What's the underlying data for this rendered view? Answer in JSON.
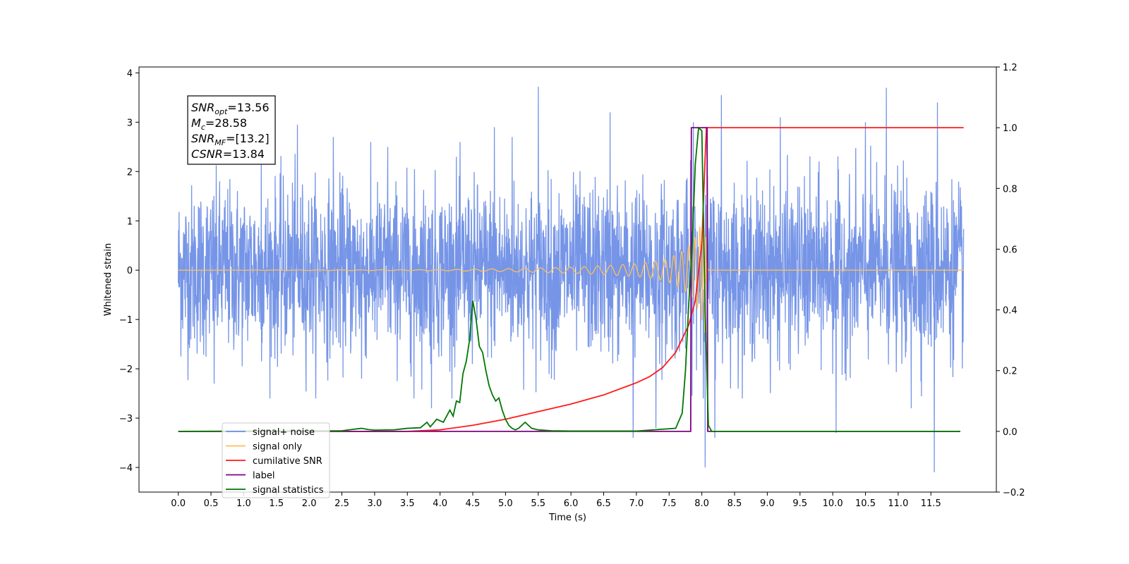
{
  "chart_data": {
    "type": "line",
    "title": "",
    "xlabel": "Time (s)",
    "ylabel_left": "Whitened strain",
    "ylabel_right": "",
    "xlim": [
      -0.6,
      12.5
    ],
    "ylim_left": [
      -4.5,
      4.12
    ],
    "ylim_right": [
      -0.2,
      1.2
    ],
    "x_ticks": [
      0.0,
      0.5,
      1.0,
      1.5,
      2.0,
      2.5,
      3.0,
      3.5,
      4.0,
      4.5,
      5.0,
      5.5,
      6.0,
      6.5,
      7.0,
      7.5,
      8.0,
      8.5,
      9.0,
      9.5,
      10.0,
      10.5,
      11.0,
      11.5
    ],
    "x_tick_labels": [
      "0.0",
      "0.5",
      "1.0",
      "1.5",
      "2.0",
      "2.5",
      "3.0",
      "3.5",
      "4.0",
      "4.5",
      "5.0",
      "5.5",
      "6.0",
      "6.5",
      "7.0",
      "7.5",
      "8.0",
      "8.5",
      "9.0",
      "9.5",
      "10.0",
      "10.5",
      "11.0",
      "11.5"
    ],
    "y_ticks_left": [
      -4,
      -3,
      -2,
      -1,
      0,
      1,
      2,
      3,
      4
    ],
    "y_tick_labels_left": [
      "−4",
      "−3",
      "−2",
      "−1",
      "0",
      "1",
      "2",
      "3",
      "4"
    ],
    "y_ticks_right": [
      -0.2,
      0.0,
      0.2,
      0.4,
      0.6,
      0.8,
      1.0,
      1.2
    ],
    "y_tick_labels_right": [
      "−0.2",
      "0.0",
      "0.2",
      "0.4",
      "0.6",
      "0.8",
      "1.0",
      "1.2"
    ],
    "grid": false,
    "legend_position": "bottom-left",
    "annotation": {
      "lines": [
        {
          "base": "SNR",
          "sub": "opt",
          "rest": "=13.56"
        },
        {
          "base": "M",
          "sub": "c",
          "rest": "=28.58"
        },
        {
          "base": "SNR",
          "sub": "MF",
          "rest": "=[13.2]"
        },
        {
          "base": "CSNR",
          "sub": "",
          "rest": "=13.84"
        }
      ]
    },
    "series": [
      {
        "name": "signal+ noise",
        "color": "#6f8fe6",
        "axis": "left",
        "x_range": [
          0.0,
          12.0
        ],
        "amplitude_typical": 1.2,
        "peaks": [
          [
            0.55,
            -2.3
          ],
          [
            1.27,
            2.3
          ],
          [
            1.82,
            2.95
          ],
          [
            2.37,
            2.7
          ],
          [
            2.8,
            -2.2
          ],
          [
            3.2,
            2.5
          ],
          [
            3.6,
            -2.6
          ],
          [
            3.87,
            -2.8
          ],
          [
            4.25,
            2.3
          ],
          [
            4.83,
            2.9
          ],
          [
            5.1,
            2.7
          ],
          [
            5.5,
            3.72
          ],
          [
            5.7,
            -2.2
          ],
          [
            6.6,
            3.2
          ],
          [
            6.95,
            -3.4
          ],
          [
            7.3,
            -3.2
          ],
          [
            7.87,
            3.0
          ],
          [
            8.05,
            -4.0
          ],
          [
            8.3,
            3.55
          ],
          [
            8.2,
            -3.4
          ],
          [
            9.2,
            3.1
          ],
          [
            10.05,
            -3.3
          ],
          [
            10.5,
            3.0
          ],
          [
            10.82,
            3.7
          ],
          [
            11.2,
            -2.8
          ],
          [
            11.55,
            -4.1
          ],
          [
            11.6,
            3.4
          ]
        ]
      },
      {
        "name": "signal only",
        "color": "#ffbf5a",
        "axis": "left",
        "envelope_x": [
          0.0,
          4.0,
          5.0,
          6.0,
          6.5,
          7.0,
          7.3,
          7.5,
          7.7,
          7.85,
          7.95,
          8.02,
          8.05,
          8.07,
          8.1,
          12.0
        ],
        "envelope_y": [
          0.0,
          0.01,
          0.03,
          0.06,
          0.09,
          0.13,
          0.18,
          0.25,
          0.38,
          0.55,
          0.8,
          1.1,
          1.3,
          0.2,
          0.0,
          0.0
        ]
      },
      {
        "name": "cumilative SNR",
        "color": "#ff1a1a",
        "axis": "right",
        "x": [
          0.0,
          3.0,
          3.5,
          4.0,
          4.5,
          5.0,
          5.5,
          6.0,
          6.5,
          7.0,
          7.2,
          7.4,
          7.6,
          7.8,
          7.9,
          8.0,
          8.05,
          8.07,
          12.0
        ],
        "y": [
          0.0,
          0.0,
          0.0,
          0.005,
          0.02,
          0.04,
          0.065,
          0.09,
          0.12,
          0.16,
          0.18,
          0.21,
          0.26,
          0.35,
          0.43,
          0.62,
          0.9,
          1.0,
          1.0
        ]
      },
      {
        "name": "label",
        "color": "#800080",
        "axis": "right",
        "x": [
          0.0,
          7.83,
          7.84,
          8.08,
          8.09,
          11.95
        ],
        "y": [
          0.0,
          0.0,
          1.0,
          1.0,
          0.0,
          0.0
        ]
      },
      {
        "name": "signal statistics",
        "color": "#007700",
        "axis": "right",
        "x": [
          0.0,
          2.5,
          2.8,
          2.9,
          3.0,
          3.3,
          3.5,
          3.7,
          3.8,
          3.85,
          3.95,
          4.05,
          4.1,
          4.15,
          4.2,
          4.25,
          4.3,
          4.35,
          4.4,
          4.45,
          4.5,
          4.55,
          4.6,
          4.65,
          4.7,
          4.75,
          4.8,
          4.85,
          4.9,
          4.95,
          5.0,
          5.05,
          5.1,
          5.15,
          5.2,
          5.25,
          5.3,
          5.35,
          5.4,
          5.5,
          5.7,
          6.0,
          7.0,
          7.6,
          7.7,
          7.75,
          7.8,
          7.85,
          7.9,
          7.95,
          8.0,
          8.05,
          8.1,
          8.15,
          11.95
        ],
        "y": [
          0.0,
          0.002,
          0.01,
          0.006,
          0.004,
          0.005,
          0.01,
          0.012,
          0.03,
          0.015,
          0.04,
          0.03,
          0.05,
          0.07,
          0.05,
          0.1,
          0.095,
          0.19,
          0.23,
          0.3,
          0.43,
          0.37,
          0.28,
          0.26,
          0.2,
          0.15,
          0.12,
          0.1,
          0.11,
          0.07,
          0.04,
          0.02,
          0.01,
          0.005,
          0.01,
          0.02,
          0.03,
          0.02,
          0.01,
          0.005,
          0.002,
          0.001,
          0.001,
          0.01,
          0.06,
          0.2,
          0.42,
          0.6,
          0.88,
          1.0,
          0.99,
          0.4,
          0.02,
          0.0,
          0.0
        ]
      }
    ]
  }
}
